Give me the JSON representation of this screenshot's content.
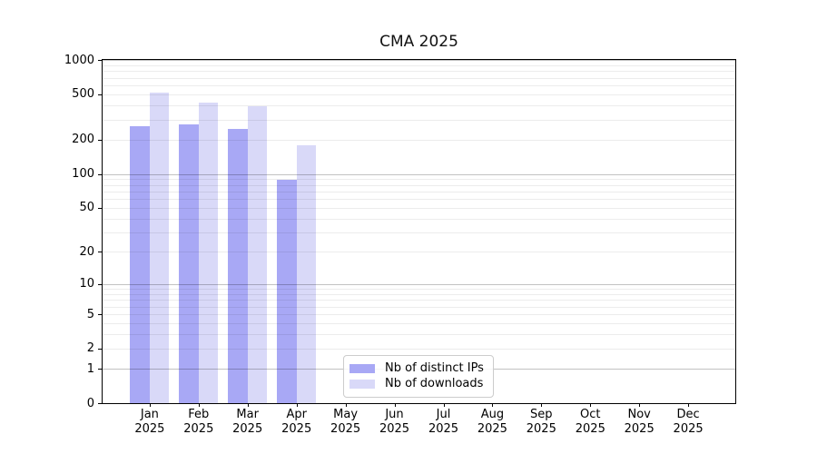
{
  "title": "CMA 2025",
  "chart_data": {
    "type": "bar",
    "title": "CMA 2025",
    "categories": [
      "Jan",
      "Feb",
      "Mar",
      "Apr",
      "May",
      "Jun",
      "Jul",
      "Aug",
      "Sep",
      "Oct",
      "Nov",
      "Dec"
    ],
    "category_year": "2025",
    "series": [
      {
        "name": "Nb of distinct IPs",
        "color": "#a8a8f5",
        "values": [
          265,
          275,
          250,
          88,
          0,
          0,
          0,
          0,
          0,
          0,
          0,
          0
        ]
      },
      {
        "name": "Nb of downloads",
        "color": "#d9d9f8",
        "values": [
          520,
          425,
          395,
          180,
          0,
          0,
          0,
          0,
          0,
          0,
          0,
          0
        ]
      }
    ],
    "xlabel": "",
    "ylabel": "",
    "yscale": "log1p",
    "ylim": [
      0,
      1000
    ],
    "yticks": [
      0,
      1,
      2,
      5,
      10,
      20,
      50,
      100,
      200,
      500,
      1000
    ],
    "grid": "both",
    "legend_position": "lower center"
  },
  "legend": {
    "items": [
      {
        "label": "Nb of distinct IPs",
        "color": "#a8a8f5"
      },
      {
        "label": "Nb of downloads",
        "color": "#d9d9f8"
      }
    ]
  }
}
